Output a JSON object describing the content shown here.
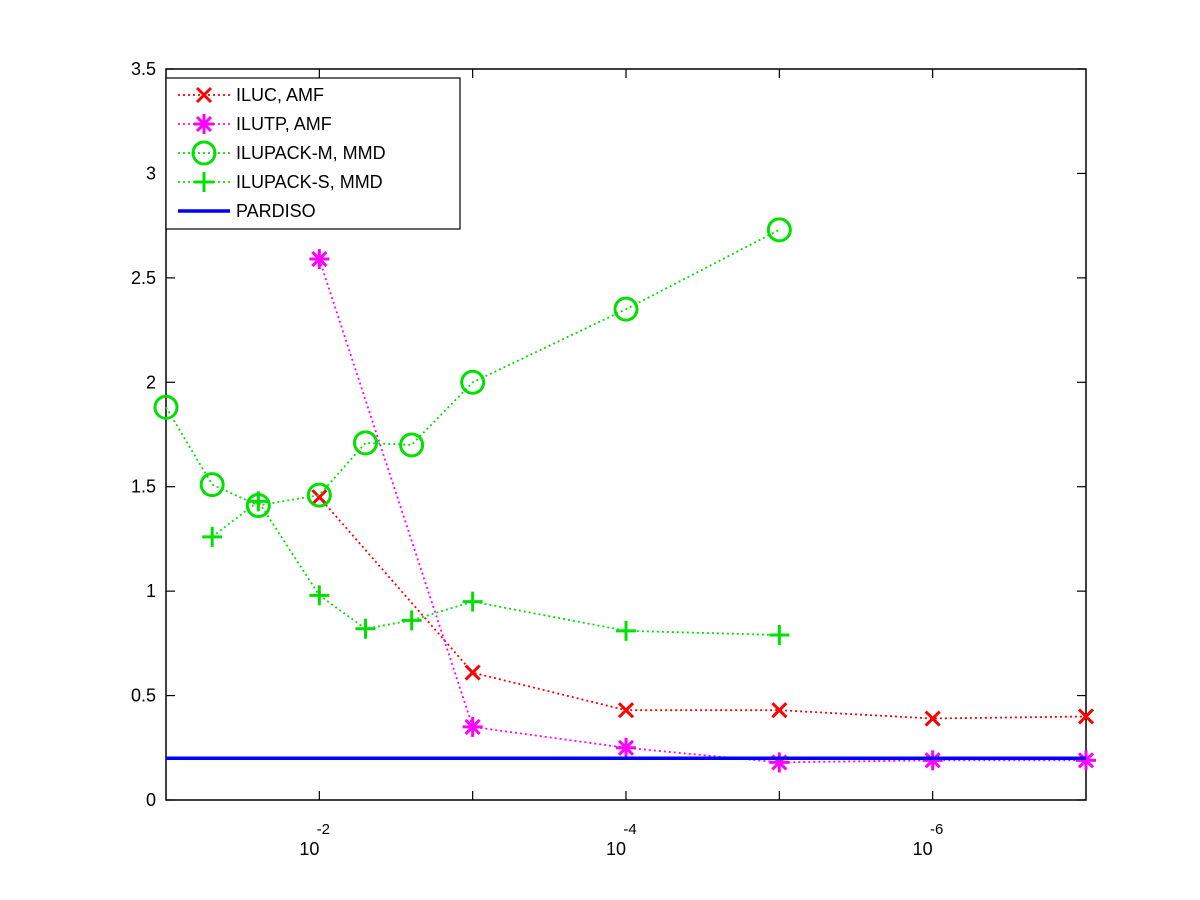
{
  "chart_data": {
    "type": "line",
    "x_scale": "log",
    "x_reversed": true,
    "xlim": [
      0.1,
      1e-07
    ],
    "ylim": [
      0,
      3.5
    ],
    "grid": false,
    "legend_position": "top-left",
    "x_ticks": [
      {
        "value": 0.01,
        "base": "10",
        "exponent": "-2"
      },
      {
        "value": 0.0001,
        "base": "10",
        "exponent": "-4"
      },
      {
        "value": 1e-06,
        "base": "10",
        "exponent": "-6"
      }
    ],
    "y_ticks": [
      {
        "value": 0,
        "label": "0"
      },
      {
        "value": 0.5,
        "label": "0.5"
      },
      {
        "value": 1,
        "label": "1"
      },
      {
        "value": 1.5,
        "label": "1.5"
      },
      {
        "value": 2,
        "label": "2"
      },
      {
        "value": 2.5,
        "label": "2.5"
      },
      {
        "value": 3,
        "label": "3"
      },
      {
        "value": 3.5,
        "label": "3.5"
      }
    ],
    "series": [
      {
        "name": "ILUC, AMF",
        "color": "#ff0000",
        "marker": "x",
        "line_style": "dotted",
        "points": [
          [
            0.01,
            1.45
          ],
          [
            0.001,
            0.61
          ],
          [
            0.0001,
            0.43
          ],
          [
            1e-05,
            0.43
          ],
          [
            1e-06,
            0.39
          ],
          [
            1e-07,
            0.4
          ]
        ]
      },
      {
        "name": "ILUTP, AMF",
        "color": "#ff00ff",
        "marker": "asterisk",
        "line_style": "dotted",
        "points": [
          [
            0.01,
            2.59
          ],
          [
            0.001,
            0.35
          ],
          [
            0.0001,
            0.25
          ],
          [
            1e-05,
            0.18
          ],
          [
            1e-06,
            0.19
          ],
          [
            1e-07,
            0.19
          ]
        ]
      },
      {
        "name": "ILUPACK-M, MMD",
        "color": "#00e000",
        "marker": "circle",
        "line_style": "dotted",
        "points": [
          [
            0.1,
            1.88
          ],
          [
            0.05,
            1.51
          ],
          [
            0.025,
            1.41
          ],
          [
            0.01,
            1.46
          ],
          [
            0.005,
            1.71
          ],
          [
            0.0025,
            1.7
          ],
          [
            0.001,
            2.0
          ],
          [
            0.0001,
            2.35
          ],
          [
            1e-05,
            2.73
          ]
        ]
      },
      {
        "name": "ILUPACK-S, MMD",
        "color": "#00e000",
        "marker": "plus",
        "line_style": "dotted",
        "points": [
          [
            0.05,
            1.26
          ],
          [
            0.025,
            1.43
          ],
          [
            0.01,
            0.98
          ],
          [
            0.005,
            0.82
          ],
          [
            0.0025,
            0.86
          ],
          [
            0.001,
            0.95
          ],
          [
            0.0001,
            0.81
          ],
          [
            1e-05,
            0.79
          ]
        ]
      },
      {
        "name": "PARDISO",
        "color": "#0000ff",
        "marker": "none",
        "line_style": "solid",
        "points": [
          [
            0.1,
            0.2
          ],
          [
            1e-07,
            0.2
          ]
        ]
      }
    ]
  }
}
